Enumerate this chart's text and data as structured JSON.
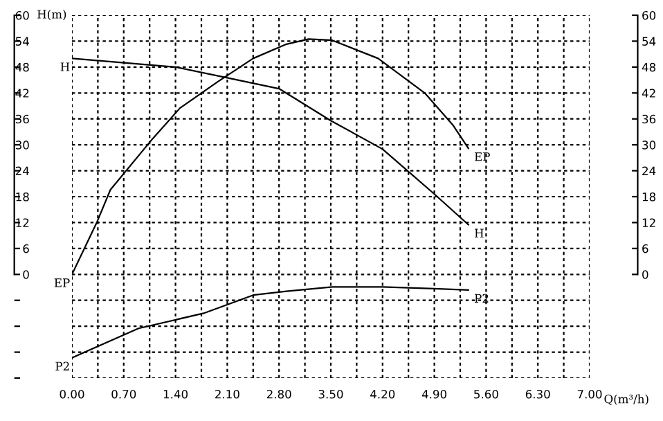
{
  "chart_data": {
    "type": "line",
    "ylabel": "H(m)",
    "xlabel": "Q(m³/h)",
    "xlim": [
      0,
      7
    ],
    "xticks": [
      {
        "value": 0,
        "label": "0.00"
      },
      {
        "value": 0.35,
        "label": null
      },
      {
        "value": 0.7,
        "label": "0.70"
      },
      {
        "value": 1.05,
        "label": null
      },
      {
        "value": 1.4,
        "label": "1.40"
      },
      {
        "value": 1.75,
        "label": null
      },
      {
        "value": 2.1,
        "label": "2.10"
      },
      {
        "value": 2.45,
        "label": null
      },
      {
        "value": 2.8,
        "label": "2.80"
      },
      {
        "value": 3.15,
        "label": null
      },
      {
        "value": 3.5,
        "label": "3.50"
      },
      {
        "value": 3.85,
        "label": null
      },
      {
        "value": 4.2,
        "label": "4.20"
      },
      {
        "value": 4.55,
        "label": null
      },
      {
        "value": 4.9,
        "label": "4.90"
      },
      {
        "value": 5.25,
        "label": null
      },
      {
        "value": 5.6,
        "label": "5.60"
      },
      {
        "value": 5.95,
        "label": null
      },
      {
        "value": 6.3,
        "label": "6.30"
      },
      {
        "value": 6.65,
        "label": null
      },
      {
        "value": 7,
        "label": "7.00"
      }
    ],
    "ylim": [
      -24,
      60
    ],
    "yticks": [
      {
        "value": -24,
        "label": null
      },
      {
        "value": -18,
        "label": null
      },
      {
        "value": -12,
        "label": null
      },
      {
        "value": -6,
        "label": null
      },
      0,
      6,
      12,
      18,
      24,
      30,
      36,
      42,
      48,
      54,
      60
    ],
    "y2lim": [
      -24,
      60
    ],
    "y2ticks": [
      0,
      6,
      12,
      18,
      24,
      30,
      36,
      42,
      48,
      54,
      60
    ],
    "grid": true,
    "legend": false,
    "line_style": "solid",
    "marker": "none",
    "series": [
      {
        "name": "H",
        "color": "#000000",
        "x": [
          0,
          0.7,
          1.4,
          2.1,
          2.8,
          3.5,
          4.2,
          4.9,
          5.36
        ],
        "values": [
          50,
          49,
          48,
          45.5,
          43,
          35.6,
          29,
          18.6,
          11.5
        ]
      },
      {
        "name": "EP",
        "color": "#000000",
        "x": [
          0,
          0.34,
          0.52,
          1.09,
          1.46,
          1.97,
          2.45,
          2.9,
          3.2,
          3.52,
          4.14,
          4.77,
          5.15,
          5.36
        ],
        "values": [
          0,
          12.2,
          19.6,
          31.4,
          38.5,
          44.6,
          50,
          53.3,
          54.5,
          54.2,
          50,
          42,
          34.6,
          29.2
        ]
      },
      {
        "name": "P2",
        "color": "#000000",
        "x": [
          0,
          0.9,
          1.78,
          2.45,
          2.9,
          3.52,
          4.2,
          4.9,
          5.36
        ],
        "values": [
          -19.3,
          -12.5,
          -9,
          -4.8,
          -3.9,
          -2.9,
          -2.9,
          -3.3,
          -3.6
        ]
      }
    ]
  }
}
